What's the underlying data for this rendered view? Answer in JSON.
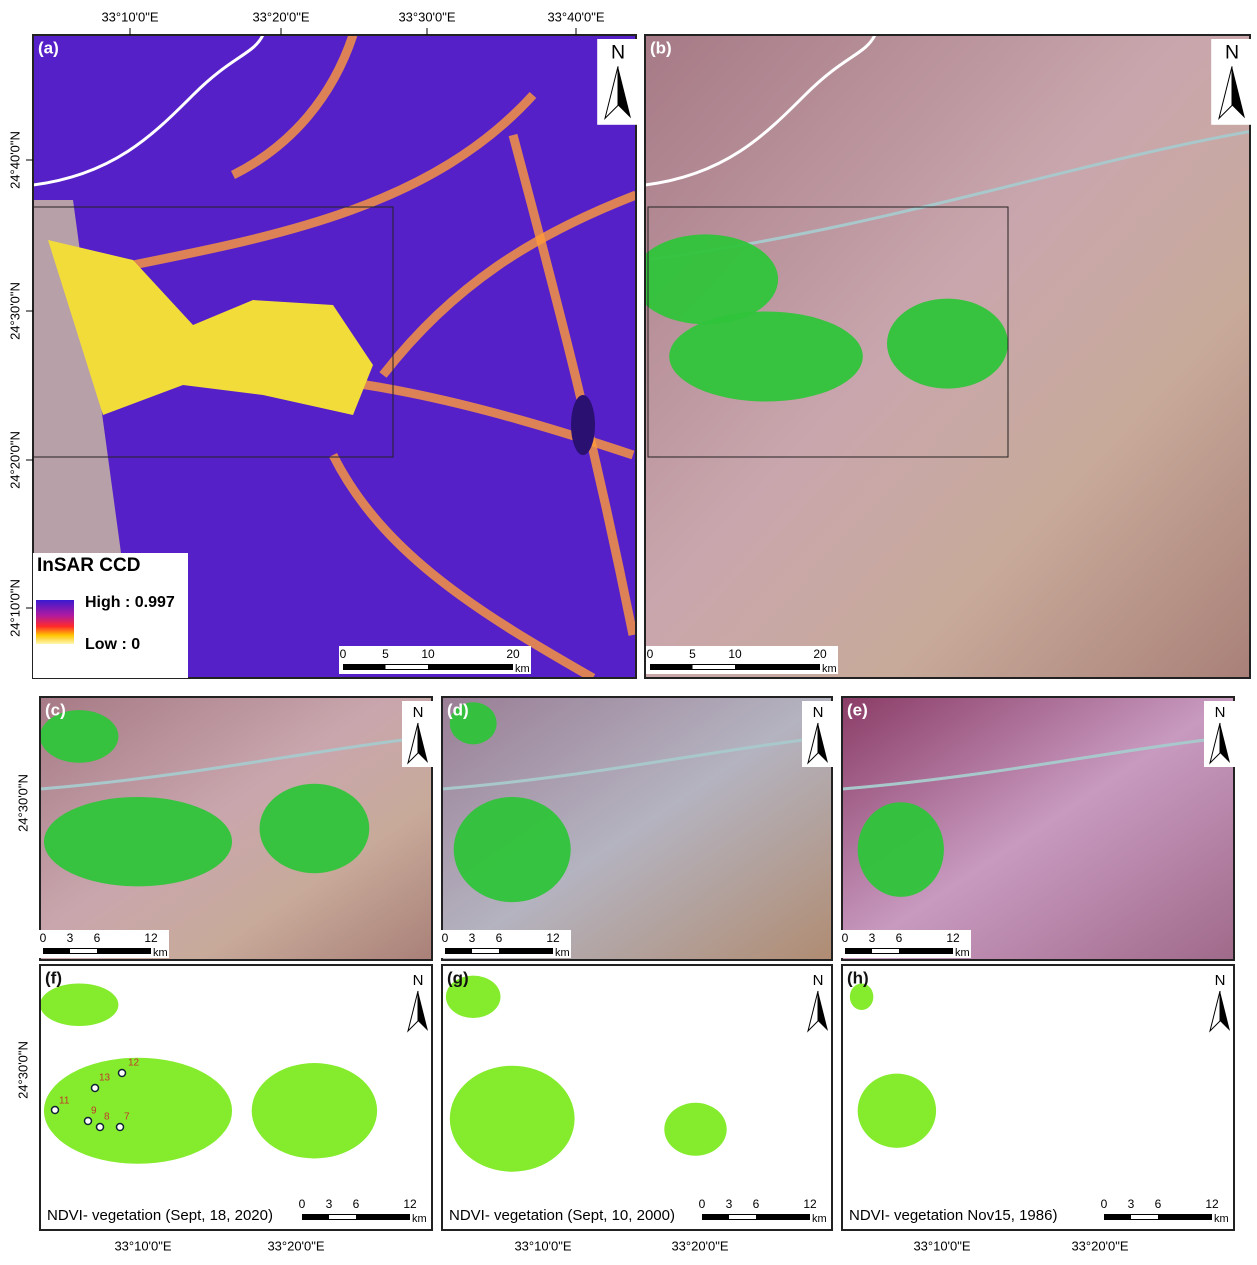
{
  "top_lon_labels": [
    "33°10'0\"E",
    "33°20'0\"E",
    "33°30'0\"E",
    "33°40'0\"E"
  ],
  "lat_labels_a": [
    "24°40'0\"N",
    "24°30'0\"N",
    "24°20'0\"N",
    "24°10'0\"N"
  ],
  "row2_lat_label": "24°30'0\"N",
  "row3_lat_label": "24°30'0\"N",
  "bottom_lon_labels": [
    "33°10'0\"E",
    "33°20'0\"E"
  ],
  "north": "N",
  "panels": [
    {
      "label": "(a)"
    },
    {
      "label": "(b)"
    },
    {
      "label": "(c)"
    },
    {
      "label": "(d)"
    },
    {
      "label": "(e)"
    },
    {
      "label": "(f)",
      "caption": "NDVI- vegetation (Sept, 18, 2020)"
    },
    {
      "label": "(g)",
      "caption": "NDVI- vegetation (Sept, 10, 2000)"
    },
    {
      "label": "(h)",
      "caption": "NDVI- vegetation Nov15, 1986)"
    }
  ],
  "scale_large": {
    "ticks": [
      "0",
      "5",
      "10",
      "20"
    ],
    "unit": "km"
  },
  "scale_small": {
    "ticks": [
      "0",
      "3",
      "6",
      "12"
    ],
    "unit": "km"
  },
  "legend": {
    "title": "InSAR CCD",
    "high": "High : 0.997",
    "low": "Low : 0"
  },
  "sample_points": [
    "12",
    "13",
    "11",
    "9",
    "8",
    "7"
  ]
}
